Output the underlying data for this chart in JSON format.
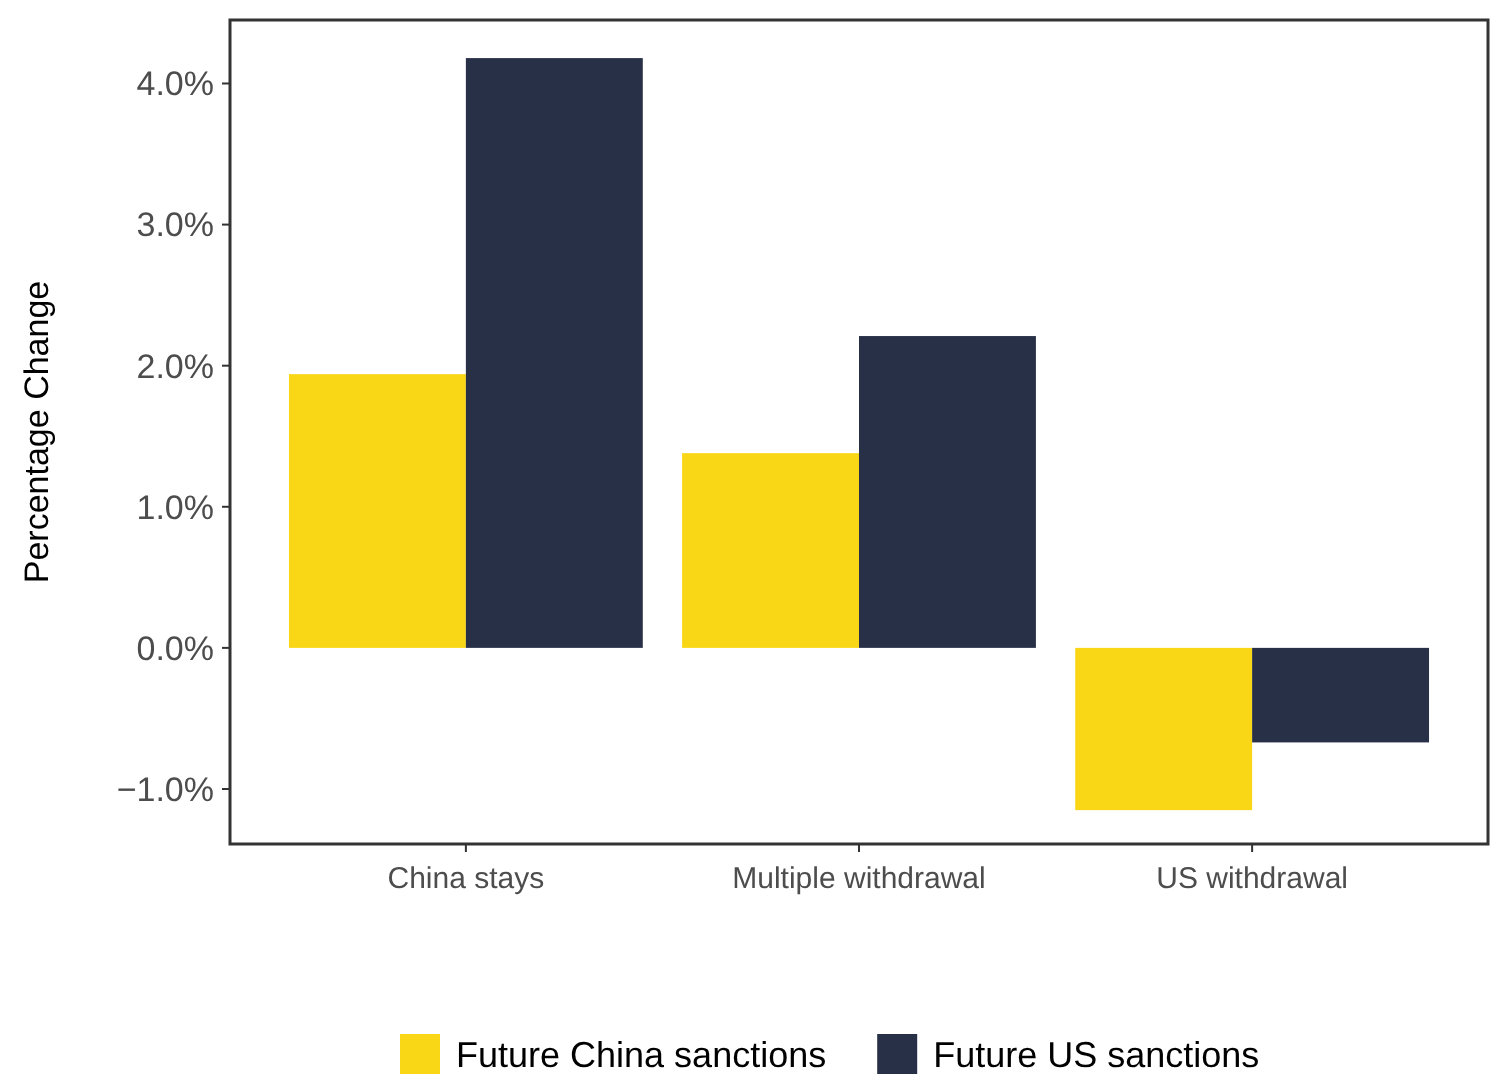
{
  "chart_data": {
    "type": "bar",
    "ylabel": "Percentage Change",
    "categories": [
      "China stays",
      "Multiple withdrawal",
      "US withdrawal"
    ],
    "series": [
      {
        "name": "Future China sanctions",
        "color": "#f9d616",
        "values": [
          1.94,
          1.38,
          -1.15
        ]
      },
      {
        "name": "Future US sanctions",
        "color": "#283048",
        "values": [
          4.18,
          2.21,
          -0.67
        ]
      }
    ],
    "ylim": [
      -1.39,
      4.45
    ],
    "yticks": [
      {
        "value": -1,
        "label": "−1.0%"
      },
      {
        "value": 0,
        "label": "0.0%"
      },
      {
        "value": 1,
        "label": "1.0%"
      },
      {
        "value": 2,
        "label": "2.0%"
      },
      {
        "value": 3,
        "label": "3.0%"
      },
      {
        "value": 4,
        "label": "4.0%"
      }
    ],
    "grid": false,
    "legend": "bottom"
  }
}
